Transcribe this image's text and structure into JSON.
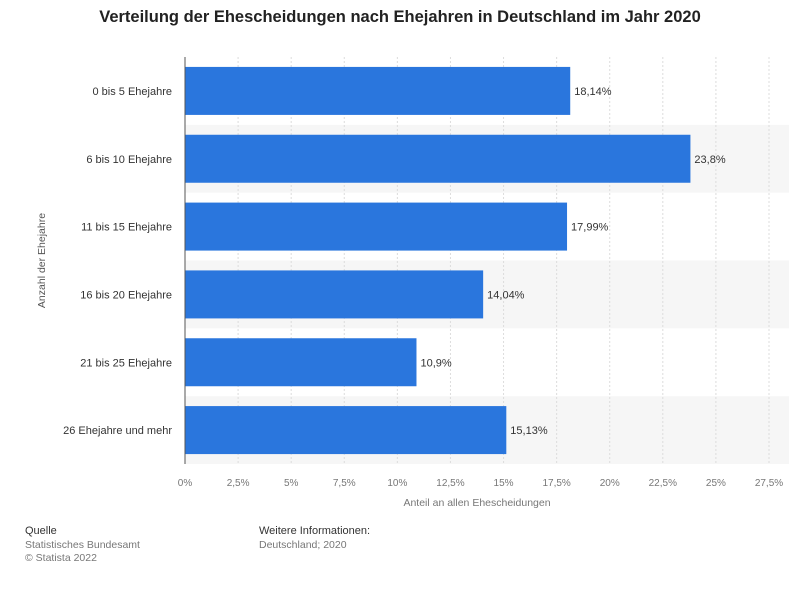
{
  "chart_data": {
    "type": "bar",
    "orientation": "horizontal",
    "title": "Verteilung der Ehescheidungen nach Ehejahren in Deutschland im Jahr 2020",
    "xlabel": "Anteil an allen Ehescheidungen",
    "ylabel": "Anzahl der Ehejahre",
    "categories": [
      "0 bis 5 Ehejahre",
      "6 bis 10 Ehejahre",
      "11 bis 15 Ehejahre",
      "16 bis 20 Ehejahre",
      "21 bis 25 Ehejahre",
      "26 Ehejahre und mehr"
    ],
    "values": [
      18.14,
      23.8,
      17.99,
      14.04,
      10.9,
      15.13
    ],
    "value_labels": [
      "18,14%",
      "23,8%",
      "17,99%",
      "14,04%",
      "10,9%",
      "15,13%"
    ],
    "xlim": [
      0,
      27.5
    ],
    "xticks": [
      0,
      2.5,
      5,
      7.5,
      10,
      12.5,
      15,
      17.5,
      20,
      22.5,
      25,
      27.5
    ],
    "xtick_labels": [
      "0%",
      "2,5%",
      "5%",
      "7,5%",
      "10%",
      "12,5%",
      "15%",
      "17,5%",
      "20%",
      "22,5%",
      "25%",
      "27,5%"
    ],
    "grid": true,
    "colors": {
      "bar": "#2a76dd",
      "band": "#f6f6f6",
      "grid": "#dcdcdc"
    }
  },
  "footer": {
    "source_heading": "Quelle",
    "source_lines": [
      "Statistisches Bundesamt",
      "© Statista 2022"
    ],
    "info_heading": "Weitere Informationen:",
    "info_lines": [
      "Deutschland; 2020"
    ]
  }
}
